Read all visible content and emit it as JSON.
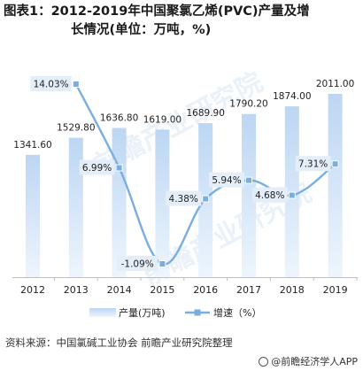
{
  "title": {
    "line1": "图表1：2012-2019年中国聚氯乙烯(PVC)产量及增",
    "line2": "长情况(单位：万吨，%)"
  },
  "source": "资料来源：中国氯碱工业协会 前瞻产业研究院整理",
  "brand": "@前瞻经济学人APP",
  "watermark": "前瞻产业研究院",
  "colors": {
    "bar_top": "#bcd6f3",
    "bar_bottom": "#eef5fd",
    "line": "#7aaee0",
    "marker": "#7aaee0",
    "label_box": "#e4eef9"
  },
  "chart_data": {
    "type": "bar",
    "categories": [
      "2012",
      "2013",
      "2014",
      "2015",
      "2016",
      "2017",
      "2018",
      "2019"
    ],
    "series": [
      {
        "name": "产量(万吨)",
        "type": "bar",
        "values": [
          1341.6,
          1529.8,
          1636.8,
          1619.0,
          1689.9,
          1790.2,
          1874.0,
          2011.0
        ],
        "labels": [
          "1341.60",
          "1529.80",
          "1636.80",
          "1619.00",
          "1689.90",
          "1790.20",
          "1874.00",
          "2011.00"
        ]
      },
      {
        "name": "增速（%）",
        "type": "line",
        "values": [
          null,
          14.03,
          6.99,
          -1.09,
          4.38,
          5.94,
          4.68,
          7.31
        ],
        "labels": [
          null,
          "14.03%",
          "6.99%",
          "-1.09%",
          "4.38%",
          "5.94%",
          "4.68%",
          "7.31%"
        ]
      }
    ],
    "legend_position": "bottom",
    "grid": false
  }
}
